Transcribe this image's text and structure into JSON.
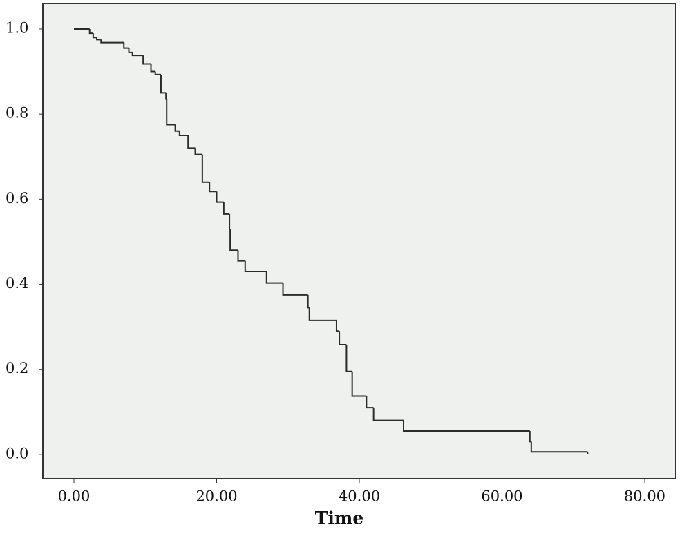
{
  "chart_data": {
    "type": "step",
    "x_label": "Time",
    "x": [
      0,
      2.2,
      2.7,
      3.2,
      3.8,
      7.0,
      7.7,
      8.2,
      9.7,
      10.8,
      11.4,
      12.2,
      12.9,
      13.0,
      14.2,
      14.8,
      16.0,
      17.0,
      18.0,
      19.0,
      20.0,
      21.0,
      21.8,
      21.9,
      23.0,
      24.0,
      27.0,
      29.3,
      32.8,
      33.0,
      36.8,
      37.2,
      38.2,
      39.0,
      41.0,
      42.0,
      46.2,
      63.9,
      64.1,
      72.0
    ],
    "values": [
      1.0,
      0.99,
      0.98,
      0.975,
      0.968,
      0.955,
      0.945,
      0.938,
      0.918,
      0.9,
      0.893,
      0.85,
      0.835,
      0.775,
      0.76,
      0.75,
      0.72,
      0.705,
      0.64,
      0.618,
      0.593,
      0.565,
      0.53,
      0.48,
      0.455,
      0.43,
      0.403,
      0.375,
      0.345,
      0.315,
      0.29,
      0.258,
      0.195,
      0.137,
      0.11,
      0.08,
      0.055,
      0.03,
      0.006,
      0.0
    ],
    "end_x": 72.0,
    "color": "#2b2b2b",
    "xlim": [
      -4.36,
      84.36
    ],
    "ylim": [
      -0.057,
      1.06
    ],
    "xticks": [
      {
        "value": 0,
        "label": "0.00"
      },
      {
        "value": 20,
        "label": "20.00"
      },
      {
        "value": 40,
        "label": "40.00"
      },
      {
        "value": 60,
        "label": "60.00"
      },
      {
        "value": 80,
        "label": "80.00"
      }
    ],
    "yticks": [
      {
        "value": 0,
        "label": "0.0"
      },
      0.2,
      0.4,
      0.6,
      {
        "value": 1,
        "label": "1.0"
      },
      0.8
    ],
    "grid": false
  }
}
